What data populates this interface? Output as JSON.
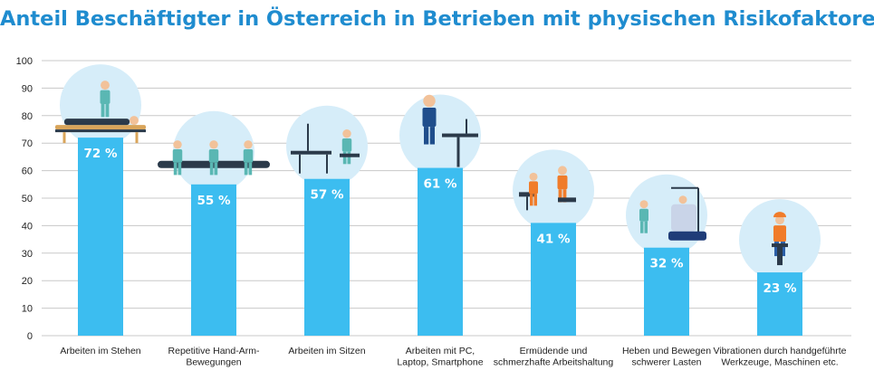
{
  "chart_data": {
    "type": "bar",
    "title": "Anteil Beschäftigter in Österreich in Betrieben mit physischen Risikofaktoren",
    "categories": [
      [
        "Arbeiten im Stehen"
      ],
      [
        "Repetitive Hand-Arm-",
        "Bewegungen"
      ],
      [
        "Arbeiten im Sitzen"
      ],
      [
        "Arbeiten mit PC,",
        "Laptop, Smartphone"
      ],
      [
        "Ermüdende und",
        "schmerzhafte Arbeitshaltung"
      ],
      [
        "Heben und Bewegen",
        "schwerer Lasten"
      ],
      [
        "Vibrationen durch handgeführte",
        "Werkzeuge, Maschinen etc."
      ]
    ],
    "values": [
      72,
      55,
      57,
      61,
      41,
      32,
      23
    ],
    "value_labels": [
      "72 %",
      "55 %",
      "57 %",
      "61 %",
      "41 %",
      "32 %",
      "23 %"
    ],
    "ylim": [
      0,
      100
    ],
    "yticks": [
      "0",
      "10",
      "20",
      "30",
      "40",
      "50",
      "60",
      "70",
      "80",
      "90",
      "100"
    ],
    "grid": true,
    "colors": {
      "title": "#1f8ccf",
      "bar": "#3cbdf0",
      "grid": "#c8c8c8",
      "circle": "#d6edf9",
      "teal": "#5ab7b3",
      "skin": "#f2c29a",
      "dark": "#2b3a4a",
      "orange": "#f07c2a",
      "table": "#d9a55b"
    },
    "icons": [
      "massage-therapist-icon",
      "assembly-line-workers-icon",
      "desk-sitting-worker-icon",
      "standing-desk-worker-icon",
      "hairdresser-icon",
      "patient-lift-nurse-icon",
      "jackhammer-worker-icon"
    ]
  }
}
